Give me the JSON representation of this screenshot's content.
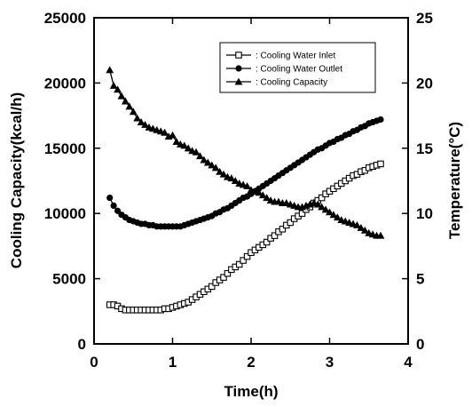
{
  "chart_data": {
    "type": "line",
    "xlabel": "Time(h)",
    "ylabel_left": "Cooling Capacity(kcal/h)",
    "ylabel_right": "Temperature(°C)",
    "xlim": [
      0,
      4
    ],
    "ylim_left": [
      0,
      25000
    ],
    "ylim_right": [
      0,
      25
    ],
    "x_ticks": [
      "0",
      "1",
      "2",
      "3",
      "4"
    ],
    "y_left_ticks": [
      "0",
      "5000",
      "10000",
      "15000",
      "20000",
      "25000"
    ],
    "y_right_ticks": [
      "0",
      "5",
      "10",
      "15",
      "20",
      "25"
    ],
    "legend_position": "top-right",
    "series": [
      {
        "name": ": Cooling Water Inlet",
        "axis": "right",
        "marker": "square-open",
        "x": [
          0.2,
          0.25,
          0.3,
          0.35,
          0.4,
          0.45,
          0.5,
          0.55,
          0.6,
          0.65,
          0.7,
          0.75,
          0.8,
          0.85,
          0.9,
          0.95,
          1.0,
          1.05,
          1.1,
          1.15,
          1.2,
          1.25,
          1.3,
          1.35,
          1.4,
          1.45,
          1.5,
          1.55,
          1.6,
          1.65,
          1.7,
          1.75,
          1.8,
          1.85,
          1.9,
          1.95,
          2.0,
          2.05,
          2.1,
          2.15,
          2.2,
          2.25,
          2.3,
          2.35,
          2.4,
          2.45,
          2.5,
          2.55,
          2.6,
          2.65,
          2.7,
          2.75,
          2.8,
          2.85,
          2.9,
          2.95,
          3.0,
          3.05,
          3.1,
          3.15,
          3.2,
          3.25,
          3.3,
          3.35,
          3.4,
          3.45,
          3.5,
          3.55,
          3.6,
          3.65
        ],
        "y": [
          3.0,
          3.0,
          2.9,
          2.7,
          2.6,
          2.6,
          2.6,
          2.6,
          2.6,
          2.6,
          2.6,
          2.6,
          2.6,
          2.6,
          2.7,
          2.7,
          2.8,
          2.9,
          3.0,
          3.1,
          3.2,
          3.4,
          3.6,
          3.8,
          4.0,
          4.2,
          4.4,
          4.7,
          4.9,
          5.1,
          5.4,
          5.7,
          5.9,
          6.1,
          6.4,
          6.7,
          7.0,
          7.2,
          7.4,
          7.6,
          7.8,
          8.1,
          8.3,
          8.6,
          8.8,
          9.1,
          9.3,
          9.6,
          9.8,
          10.0,
          10.3,
          10.5,
          10.8,
          11.0,
          11.2,
          11.5,
          11.7,
          11.9,
          12.1,
          12.3,
          12.5,
          12.7,
          12.9,
          13.0,
          13.2,
          13.3,
          13.5,
          13.6,
          13.7,
          13.8
        ]
      },
      {
        "name": ": Cooling Water Outlet",
        "axis": "right",
        "marker": "circle",
        "x": [
          0.2,
          0.25,
          0.3,
          0.35,
          0.4,
          0.45,
          0.5,
          0.55,
          0.6,
          0.65,
          0.7,
          0.75,
          0.8,
          0.85,
          0.9,
          0.95,
          1.0,
          1.05,
          1.1,
          1.15,
          1.2,
          1.25,
          1.3,
          1.35,
          1.4,
          1.45,
          1.5,
          1.55,
          1.6,
          1.65,
          1.7,
          1.75,
          1.8,
          1.85,
          1.9,
          1.95,
          2.0,
          2.05,
          2.1,
          2.15,
          2.2,
          2.25,
          2.3,
          2.35,
          2.4,
          2.45,
          2.5,
          2.55,
          2.6,
          2.65,
          2.7,
          2.75,
          2.8,
          2.85,
          2.9,
          2.95,
          3.0,
          3.05,
          3.1,
          3.15,
          3.2,
          3.25,
          3.3,
          3.35,
          3.4,
          3.45,
          3.5,
          3.55,
          3.6,
          3.65
        ],
        "y": [
          11.2,
          10.6,
          10.2,
          9.9,
          9.7,
          9.5,
          9.4,
          9.3,
          9.2,
          9.2,
          9.1,
          9.1,
          9.0,
          9.0,
          9.0,
          9.0,
          9.0,
          9.0,
          9.0,
          9.1,
          9.2,
          9.3,
          9.4,
          9.5,
          9.6,
          9.7,
          9.8,
          10.0,
          10.1,
          10.3,
          10.4,
          10.6,
          10.8,
          11.0,
          11.2,
          11.3,
          11.5,
          11.7,
          11.9,
          12.1,
          12.3,
          12.5,
          12.7,
          12.9,
          13.1,
          13.3,
          13.5,
          13.7,
          13.9,
          14.1,
          14.3,
          14.5,
          14.7,
          14.9,
          15.0,
          15.2,
          15.4,
          15.5,
          15.7,
          15.8,
          16.0,
          16.1,
          16.3,
          16.4,
          16.6,
          16.7,
          16.9,
          17.0,
          17.1,
          17.2
        ]
      },
      {
        "name": ": Cooling Capacity",
        "axis": "left",
        "marker": "triangle",
        "x": [
          0.2,
          0.25,
          0.3,
          0.35,
          0.4,
          0.45,
          0.5,
          0.55,
          0.6,
          0.65,
          0.7,
          0.75,
          0.8,
          0.85,
          0.9,
          0.95,
          1.0,
          1.05,
          1.1,
          1.15,
          1.2,
          1.25,
          1.3,
          1.35,
          1.4,
          1.45,
          1.5,
          1.55,
          1.6,
          1.65,
          1.7,
          1.75,
          1.8,
          1.85,
          1.9,
          1.95,
          2.0,
          2.05,
          2.1,
          2.15,
          2.2,
          2.25,
          2.3,
          2.35,
          2.4,
          2.45,
          2.5,
          2.55,
          2.6,
          2.65,
          2.7,
          2.75,
          2.8,
          2.85,
          2.9,
          2.95,
          3.0,
          3.05,
          3.1,
          3.15,
          3.2,
          3.25,
          3.3,
          3.35,
          3.4,
          3.45,
          3.5,
          3.55,
          3.6,
          3.65
        ],
        "y": [
          21000,
          19800,
          19500,
          19000,
          18600,
          18200,
          17800,
          17300,
          17000,
          16800,
          16600,
          16500,
          16400,
          16300,
          16200,
          15900,
          16000,
          15500,
          15300,
          15200,
          15000,
          14800,
          14700,
          14400,
          14100,
          13900,
          13700,
          13500,
          13200,
          13000,
          12800,
          12700,
          12500,
          12300,
          12200,
          12100,
          11800,
          11700,
          11600,
          11400,
          11200,
          11000,
          10900,
          10900,
          10800,
          10800,
          10700,
          10600,
          10500,
          10500,
          10600,
          10700,
          10800,
          10700,
          10500,
          10300,
          10100,
          9900,
          9700,
          9500,
          9400,
          9300,
          9200,
          9100,
          8900,
          8700,
          8500,
          8400,
          8300,
          8300
        ]
      }
    ]
  }
}
